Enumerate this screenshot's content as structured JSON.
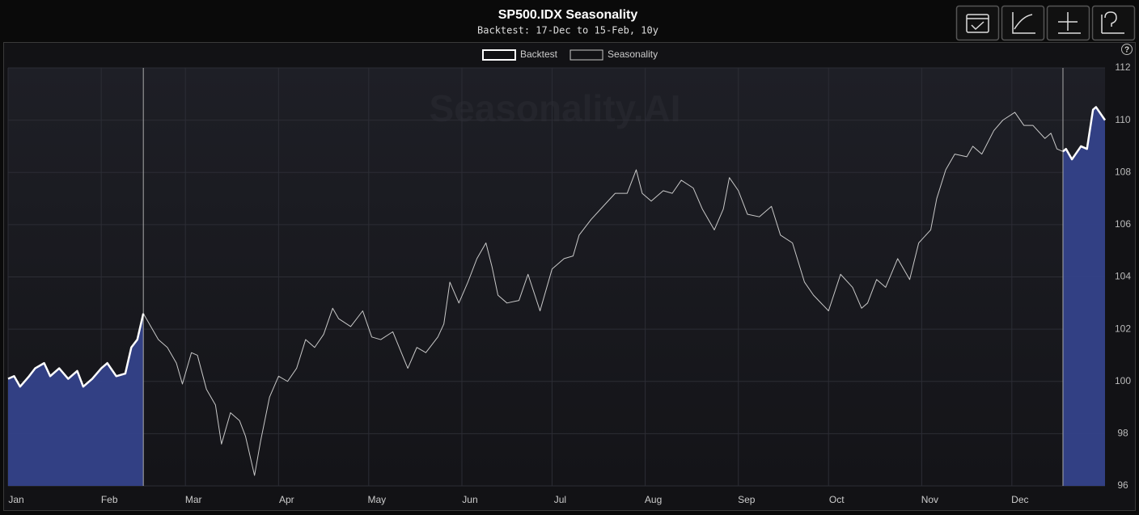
{
  "chart_data": {
    "type": "line",
    "title": "SP500.IDX Seasonality",
    "subtitle": "Backtest: 17-Dec to 15-Feb, 10y",
    "watermark": "Seasonality.AI",
    "help": "?",
    "xlim": [
      1,
      366
    ],
    "xticks": [
      {
        "value": 1,
        "label": "Jan"
      },
      {
        "value": 32,
        "label": "Feb"
      },
      {
        "value": 60,
        "label": "Mar"
      },
      {
        "value": 91,
        "label": "Apr"
      },
      {
        "value": 121,
        "label": "May"
      },
      {
        "value": 152,
        "label": "Jun"
      },
      {
        "value": 182,
        "label": "Jul"
      },
      {
        "value": 213,
        "label": "Aug"
      },
      {
        "value": 244,
        "label": "Sep"
      },
      {
        "value": 274,
        "label": "Oct"
      },
      {
        "value": 305,
        "label": "Nov"
      },
      {
        "value": 335,
        "label": "Dec"
      }
    ],
    "ylim": [
      96,
      112
    ],
    "yticks": [
      96,
      98,
      100,
      102,
      104,
      106,
      108,
      110,
      112
    ],
    "grid": true,
    "legend": "top",
    "area_color": "#34428a",
    "series": [
      {
        "name": "Backtest",
        "color": "#ffffff",
        "x": [
          1,
          3,
          5,
          8,
          10,
          13,
          15,
          18,
          21,
          24,
          26,
          29,
          32,
          34,
          37,
          40,
          42,
          44,
          46,
          null,
          352,
          353,
          355,
          358,
          360,
          362,
          363,
          366
        ],
        "values": [
          100.1,
          100.2,
          99.8,
          100.2,
          100.5,
          100.7,
          100.2,
          100.5,
          100.1,
          100.4,
          99.8,
          100.1,
          100.5,
          100.7,
          100.2,
          100.3,
          101.3,
          101.6,
          102.6,
          null,
          108.8,
          108.9,
          108.5,
          109.0,
          108.9,
          110.4,
          110.5,
          110.0
        ]
      },
      {
        "name": "Seasonality",
        "color": "#c8c8c8",
        "x": [
          46,
          48,
          51,
          54,
          57,
          59,
          62,
          64,
          67,
          70,
          72,
          75,
          78,
          80,
          83,
          85,
          88,
          91,
          94,
          97,
          100,
          103,
          106,
          109,
          111,
          115,
          119,
          122,
          125,
          129,
          134,
          137,
          140,
          144,
          146,
          148,
          151,
          154,
          157,
          160,
          162,
          164,
          167,
          171,
          174,
          178,
          182,
          186,
          189,
          191,
          195,
          199,
          203,
          207,
          210,
          212,
          215,
          219,
          222,
          225,
          229,
          232,
          236,
          239,
          241,
          244,
          247,
          251,
          255,
          258,
          262,
          266,
          269,
          274,
          278,
          282,
          285,
          287,
          290,
          293,
          297,
          301,
          304,
          308,
          310,
          313,
          316,
          320,
          322,
          325,
          329,
          332,
          336,
          339,
          342,
          346,
          348,
          350,
          352
        ],
        "values": [
          102.6,
          102.2,
          101.6,
          101.3,
          100.7,
          99.9,
          101.1,
          101.0,
          99.7,
          99.1,
          97.6,
          98.8,
          98.5,
          97.9,
          96.4,
          97.7,
          99.4,
          100.2,
          100.0,
          100.5,
          101.6,
          101.3,
          101.8,
          102.8,
          102.4,
          102.1,
          102.7,
          101.7,
          101.6,
          101.9,
          100.5,
          101.3,
          101.1,
          101.7,
          102.2,
          103.8,
          103.0,
          103.8,
          104.7,
          105.3,
          104.4,
          103.3,
          103.0,
          103.1,
          104.1,
          102.7,
          104.3,
          104.7,
          104.8,
          105.6,
          106.2,
          106.7,
          107.2,
          107.2,
          108.1,
          107.2,
          106.9,
          107.3,
          107.2,
          107.7,
          107.4,
          106.6,
          105.8,
          106.6,
          107.8,
          107.3,
          106.4,
          106.3,
          106.7,
          105.6,
          105.3,
          103.8,
          103.3,
          102.7,
          104.1,
          103.6,
          102.8,
          103.0,
          103.9,
          103.6,
          104.7,
          103.9,
          105.3,
          105.8,
          107.0,
          108.1,
          108.7,
          108.6,
          109.0,
          108.7,
          109.6,
          110.0,
          110.3,
          109.8,
          109.8,
          109.3,
          109.5,
          108.9,
          108.8
        ]
      }
    ]
  }
}
